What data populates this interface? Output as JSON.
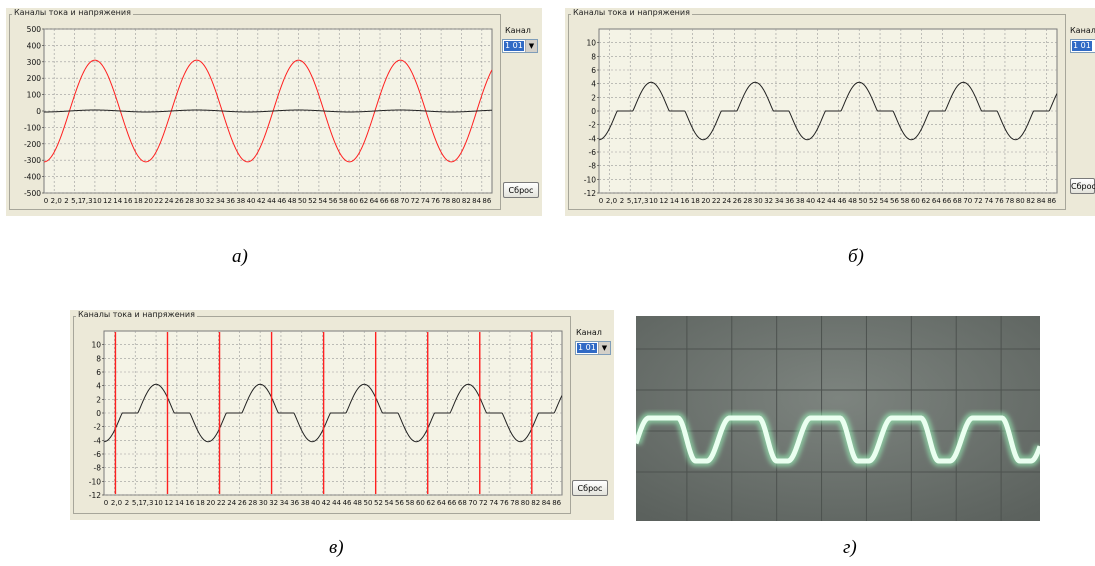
{
  "panel_title": "Каналы тока и напряжения",
  "channel_label": "Канал",
  "channel_value": "1 01",
  "reset_label": "Сброс",
  "x_tick_labels": [
    "0",
    "2,0",
    "2",
    "5,1",
    "7,3",
    "10",
    "12",
    "14",
    "16",
    "18",
    "20",
    "22",
    "24",
    "26",
    "28",
    "30",
    "32",
    "34",
    "36",
    "38",
    "40",
    "42",
    "44",
    "46",
    "48",
    "50",
    "52",
    "54",
    "56",
    "58",
    "60",
    "62",
    "64",
    "66",
    "68",
    "70",
    "72",
    "74",
    "76",
    "78",
    "80",
    "82",
    "84",
    "86"
  ],
  "captions": {
    "a": "а)",
    "b": "б)",
    "c": "в)",
    "d": "г)"
  },
  "colors": {
    "panel_bg": "#ece9d8",
    "plot_bg": "#f4f3e6",
    "grid": "#9a9a9a",
    "red": "#ff2020",
    "black": "#222222",
    "scope_bg": "#6f7570",
    "scope_trace": "#eafff0"
  },
  "chart_data": [
    {
      "type": "line",
      "x_range": [
        0,
        88
      ],
      "ylim": [
        -500,
        500
      ],
      "yticks": [
        500,
        400,
        300,
        200,
        100,
        0,
        -100,
        -200,
        -300,
        -400,
        -500
      ],
      "series": [
        {
          "color": "red",
          "shape": "sine",
          "amplitude": 310,
          "period": 20,
          "phase_deg": -90
        },
        {
          "color": "black",
          "shape": "sine",
          "amplitude": 6,
          "period": 20,
          "phase_deg": -90
        }
      ]
    },
    {
      "type": "line",
      "x_range": [
        0,
        88
      ],
      "ylim": [
        -12,
        12
      ],
      "yticks": [
        10,
        8,
        6,
        4,
        2,
        0,
        -2,
        -4,
        -6,
        -8,
        -10,
        -12
      ],
      "series": [
        {
          "color": "black",
          "shape": "clipped-sine",
          "amplitude": 4.2,
          "period": 20,
          "phase_deg": -90,
          "dead_zone": 0.45
        }
      ]
    },
    {
      "type": "line",
      "x_range": [
        0,
        88
      ],
      "ylim": [
        -12,
        12
      ],
      "yticks": [
        10,
        8,
        6,
        4,
        2,
        0,
        -2,
        -4,
        -6,
        -8,
        -10,
        -12
      ],
      "series": [
        {
          "color": "black",
          "shape": "clipped-sine",
          "amplitude": 4.2,
          "period": 20,
          "phase_deg": -90,
          "dead_zone": 0.45
        },
        {
          "color": "red",
          "shape": "impulses",
          "x": [
            2.2,
            12.2,
            22.2,
            32.2,
            42.2,
            52.2,
            62.2,
            72.2,
            82.2
          ]
        }
      ]
    }
  ]
}
